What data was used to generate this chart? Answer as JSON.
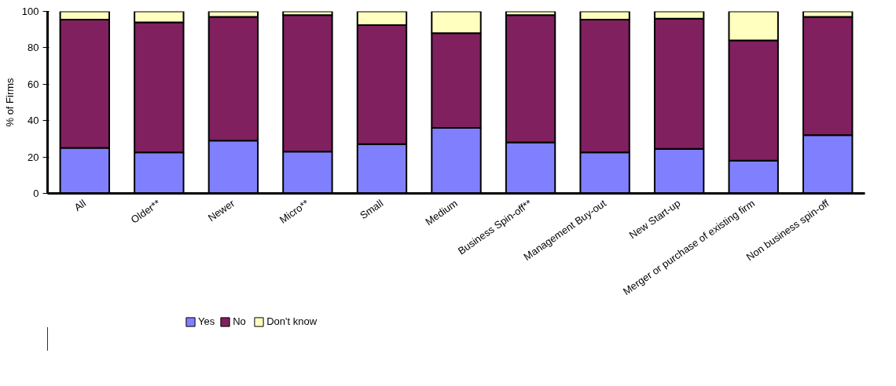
{
  "chart_data": {
    "type": "bar",
    "stacked": true,
    "ylabel": "% of Firms",
    "categories": [
      "All",
      "Older**",
      "Newer",
      "Micro**",
      "Small",
      "Medium",
      "Business Spin-off**",
      "Management Buy-out",
      "New Start-up",
      "Merger or purchase of existing firm",
      "Non business spin-off"
    ],
    "series": [
      {
        "name": "Yes",
        "color": "#8080ff",
        "values": [
          25,
          22.5,
          29,
          23,
          27,
          36,
          28,
          22.5,
          24.5,
          18,
          32
        ]
      },
      {
        "name": "No",
        "color": "#80205f",
        "values": [
          70.5,
          71.5,
          68,
          75,
          65.5,
          52,
          70,
          73,
          71.5,
          66,
          65
        ]
      },
      {
        "name": "Don't know",
        "color": "#ffffc0",
        "values": [
          4.5,
          6,
          3,
          2,
          7.5,
          12,
          2,
          4.5,
          4,
          16,
          3
        ]
      }
    ],
    "ylim": [
      0,
      100
    ],
    "yticks": [
      0,
      20,
      40,
      60,
      80,
      100
    ],
    "grid": false,
    "legend": "bottom left"
  }
}
